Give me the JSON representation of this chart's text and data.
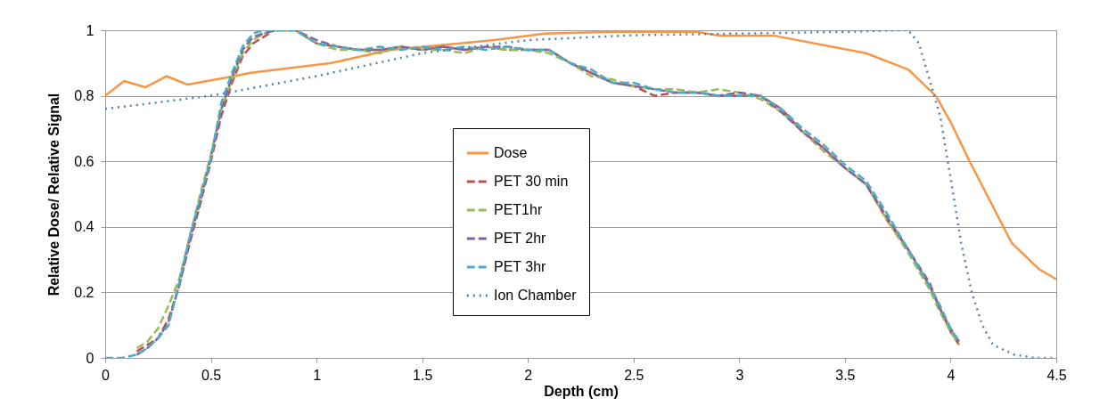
{
  "chart_data": {
    "type": "line",
    "xlabel": "Depth (cm)",
    "ylabel": "Relative Dose/ Relative Signal",
    "xlim": [
      0,
      4.5
    ],
    "ylim": [
      0,
      1
    ],
    "xticks": [
      0,
      0.5,
      1,
      1.5,
      2,
      2.5,
      3,
      3.5,
      4,
      4.5
    ],
    "yticks": [
      0,
      0.2,
      0.4,
      0.6,
      0.8,
      1
    ],
    "grid": "y",
    "legend": "bottom",
    "marker": "none",
    "series": [
      {
        "name": "Dose",
        "color": "#f79646",
        "line_style": "solid",
        "x": [
          0,
          0.09,
          0.19,
          0.29,
          0.39,
          0.61,
          0.69,
          1.07,
          1.35,
          1.84,
          2.08,
          2.4,
          2.8,
          2.9,
          3.16,
          3.6,
          3.8,
          3.93,
          4.0,
          4.09,
          4.29,
          4.42,
          4.5
        ],
        "values": [
          0.8,
          0.845,
          0.826,
          0.86,
          0.834,
          0.86,
          0.87,
          0.9,
          0.94,
          0.97,
          0.99,
          0.995,
          0.995,
          0.984,
          0.984,
          0.93,
          0.88,
          0.8,
          0.72,
          0.6,
          0.35,
          0.27,
          0.24
        ]
      },
      {
        "name": "PET 30 min",
        "color": "#c0504d",
        "line_style": "dashed",
        "x": [
          0.15,
          0.2,
          0.25,
          0.3,
          0.35,
          0.4,
          0.45,
          0.5,
          0.55,
          0.6,
          0.65,
          0.7,
          0.75,
          0.8,
          0.9,
          1.0,
          1.1,
          1.2,
          1.3,
          1.4,
          1.5,
          1.6,
          1.7,
          1.8,
          1.9,
          2.0,
          2.1,
          2.2,
          2.3,
          2.4,
          2.5,
          2.6,
          2.7,
          2.8,
          2.9,
          3.0,
          3.1,
          3.2,
          3.3,
          3.4,
          3.5,
          3.6,
          3.7,
          3.8,
          3.9,
          3.95,
          4.0,
          4.04
        ],
        "values": [
          0.02,
          0.04,
          0.06,
          0.12,
          0.22,
          0.35,
          0.47,
          0.6,
          0.74,
          0.84,
          0.92,
          0.96,
          0.98,
          1.0,
          1.0,
          0.96,
          0.95,
          0.94,
          0.94,
          0.95,
          0.94,
          0.95,
          0.94,
          0.95,
          0.94,
          0.94,
          0.94,
          0.9,
          0.87,
          0.84,
          0.83,
          0.8,
          0.81,
          0.81,
          0.8,
          0.8,
          0.8,
          0.76,
          0.69,
          0.64,
          0.58,
          0.53,
          0.42,
          0.33,
          0.22,
          0.15,
          0.08,
          0.04
        ]
      },
      {
        "name": "PET1hr",
        "color": "#9bbb59",
        "line_style": "dashed",
        "x": [
          0.15,
          0.2,
          0.25,
          0.3,
          0.35,
          0.4,
          0.45,
          0.5,
          0.55,
          0.6,
          0.65,
          0.7,
          0.75,
          0.8,
          0.9,
          1.0,
          1.1,
          1.2,
          1.3,
          1.4,
          1.5,
          1.6,
          1.7,
          1.8,
          1.9,
          2.0,
          2.1,
          2.2,
          2.3,
          2.4,
          2.5,
          2.6,
          2.7,
          2.8,
          2.9,
          3.0,
          3.1,
          3.2,
          3.3,
          3.4,
          3.5,
          3.6,
          3.7,
          3.8,
          3.9,
          3.95,
          4.0,
          4.04
        ],
        "values": [
          0.03,
          0.05,
          0.09,
          0.16,
          0.24,
          0.37,
          0.5,
          0.62,
          0.76,
          0.85,
          0.93,
          0.97,
          0.99,
          1.0,
          1.0,
          0.96,
          0.94,
          0.94,
          0.93,
          0.95,
          0.94,
          0.94,
          0.93,
          0.95,
          0.94,
          0.94,
          0.93,
          0.9,
          0.86,
          0.85,
          0.83,
          0.82,
          0.82,
          0.81,
          0.82,
          0.81,
          0.79,
          0.75,
          0.69,
          0.63,
          0.58,
          0.53,
          0.42,
          0.32,
          0.21,
          0.14,
          0.08,
          0.04
        ]
      },
      {
        "name": "PET 2hr",
        "color": "#8064a2",
        "line_style": "dashed",
        "x": [
          0.15,
          0.2,
          0.25,
          0.3,
          0.35,
          0.4,
          0.45,
          0.5,
          0.55,
          0.6,
          0.65,
          0.7,
          0.75,
          0.8,
          0.9,
          1.0,
          1.1,
          1.2,
          1.3,
          1.4,
          1.5,
          1.6,
          1.7,
          1.8,
          1.9,
          2.0,
          2.1,
          2.2,
          2.3,
          2.4,
          2.5,
          2.6,
          2.7,
          2.8,
          2.9,
          3.0,
          3.1,
          3.2,
          3.3,
          3.4,
          3.5,
          3.6,
          3.7,
          3.8,
          3.9,
          3.95,
          4.0,
          4.04
        ],
        "values": [
          0.01,
          0.03,
          0.06,
          0.11,
          0.22,
          0.36,
          0.48,
          0.61,
          0.76,
          0.86,
          0.94,
          0.98,
          0.99,
          1.0,
          1.0,
          0.97,
          0.95,
          0.94,
          0.94,
          0.95,
          0.94,
          0.95,
          0.94,
          0.95,
          0.95,
          0.94,
          0.94,
          0.9,
          0.87,
          0.84,
          0.83,
          0.82,
          0.81,
          0.81,
          0.8,
          0.81,
          0.8,
          0.75,
          0.69,
          0.64,
          0.58,
          0.53,
          0.43,
          0.33,
          0.23,
          0.15,
          0.09,
          0.05
        ]
      },
      {
        "name": "PET 3hr",
        "color": "#4bacc6",
        "line_style": "dashed",
        "x": [
          0,
          0.08,
          0.15,
          0.2,
          0.25,
          0.3,
          0.35,
          0.4,
          0.45,
          0.5,
          0.55,
          0.6,
          0.65,
          0.7,
          0.75,
          0.8,
          0.9,
          1.0,
          1.1,
          1.2,
          1.3,
          1.4,
          1.5,
          1.6,
          1.7,
          1.8,
          1.9,
          2.0,
          2.1,
          2.2,
          2.3,
          2.4,
          2.5,
          2.6,
          2.7,
          2.8,
          2.9,
          3.0,
          3.1,
          3.2,
          3.3,
          3.4,
          3.5,
          3.6,
          3.7,
          3.8,
          3.9,
          3.95,
          4.0,
          4.04
        ],
        "values": [
          0,
          0,
          0.01,
          0.03,
          0.06,
          0.1,
          0.23,
          0.37,
          0.49,
          0.61,
          0.78,
          0.87,
          0.95,
          0.99,
          1.0,
          1.0,
          1.0,
          0.96,
          0.95,
          0.94,
          0.95,
          0.94,
          0.95,
          0.94,
          0.95,
          0.94,
          0.95,
          0.94,
          0.94,
          0.9,
          0.88,
          0.84,
          0.84,
          0.82,
          0.81,
          0.81,
          0.8,
          0.8,
          0.8,
          0.76,
          0.7,
          0.65,
          0.59,
          0.54,
          0.44,
          0.33,
          0.22,
          0.16,
          0.09,
          0.05
        ]
      },
      {
        "name": "Ion Chamber",
        "color": "#4f81bd",
        "line_style": "dotted",
        "x": [
          0,
          0.5,
          1.0,
          1.5,
          2.0,
          2.5,
          3.0,
          3.5,
          3.75,
          3.8,
          3.85,
          3.9,
          3.95,
          4.0,
          4.05,
          4.1,
          4.15,
          4.2,
          4.3,
          4.4,
          4.5
        ],
        "values": [
          0.76,
          0.8,
          0.86,
          0.93,
          0.97,
          0.985,
          0.99,
          0.995,
          1.0,
          1.0,
          0.96,
          0.85,
          0.74,
          0.55,
          0.35,
          0.2,
          0.1,
          0.04,
          0.01,
          0,
          0
        ]
      }
    ]
  }
}
